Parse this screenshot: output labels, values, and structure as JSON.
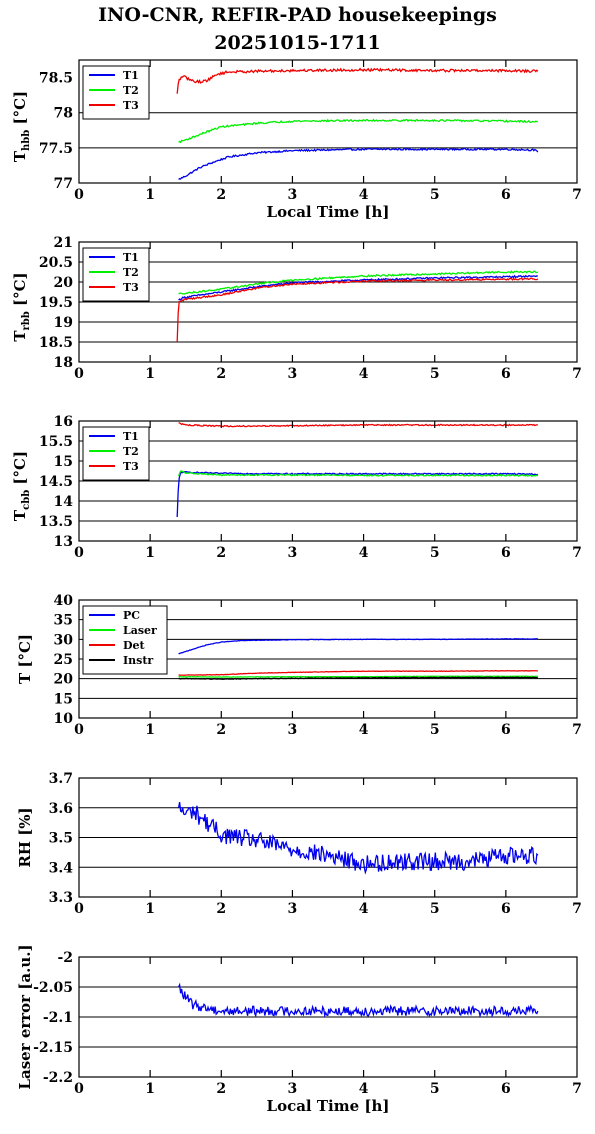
{
  "header": {
    "title_line1": "INO-CNR, REFIR-PAD housekeepings",
    "title_line2": "20251015-1711"
  },
  "colors": {
    "blue": "#0000ee",
    "green": "#00ee00",
    "red": "#ee0000",
    "black": "#000000"
  },
  "chart_data": [
    {
      "id": "hbb",
      "type": "line",
      "ylabel_main": "T",
      "ylabel_sub": "hbb",
      "ylabel_unit": "[°C]",
      "xlabel": "Local Time [h]",
      "xlim": [
        0,
        7
      ],
      "ylim": [
        77,
        78.75
      ],
      "xticks": [
        "0",
        "1",
        "2",
        "3",
        "4",
        "5",
        "6",
        "7"
      ],
      "yticks": [
        {
          "v": 77,
          "label": "77"
        },
        {
          "v": 77.5,
          "label": "77.5"
        },
        {
          "v": 78,
          "label": "78"
        },
        {
          "v": 78.5,
          "label": "78.5"
        }
      ],
      "grid": "horizontal",
      "legend": "top-left",
      "series": [
        {
          "name": "T1",
          "color": "#0000ee",
          "noise": 0.012,
          "points": [
            [
              1.4,
              77.05
            ],
            [
              1.5,
              77.1
            ],
            [
              1.7,
              77.22
            ],
            [
              1.9,
              77.3
            ],
            [
              2.1,
              77.37
            ],
            [
              2.5,
              77.43
            ],
            [
              3.0,
              77.46
            ],
            [
              4.0,
              77.48
            ],
            [
              5.0,
              77.48
            ],
            [
              6.0,
              77.48
            ],
            [
              6.4,
              77.47
            ],
            [
              6.45,
              77.44
            ]
          ]
        },
        {
          "name": "T2",
          "color": "#00ee00",
          "noise": 0.012,
          "points": [
            [
              1.4,
              77.58
            ],
            [
              1.6,
              77.65
            ],
            [
              1.8,
              77.73
            ],
            [
              2.0,
              77.8
            ],
            [
              2.5,
              77.85
            ],
            [
              3.0,
              77.88
            ],
            [
              4.0,
              77.89
            ],
            [
              5.0,
              77.89
            ],
            [
              6.0,
              77.88
            ],
            [
              6.45,
              77.87
            ]
          ]
        },
        {
          "name": "T3",
          "color": "#ee0000",
          "noise": 0.018,
          "points": [
            [
              1.38,
              78.27
            ],
            [
              1.4,
              78.45
            ],
            [
              1.45,
              78.52
            ],
            [
              1.5,
              78.5
            ],
            [
              1.6,
              78.45
            ],
            [
              1.7,
              78.44
            ],
            [
              1.8,
              78.46
            ],
            [
              1.95,
              78.55
            ],
            [
              2.1,
              78.58
            ],
            [
              3.0,
              78.6
            ],
            [
              4.0,
              78.61
            ],
            [
              5.0,
              78.6
            ],
            [
              6.0,
              78.6
            ],
            [
              6.45,
              78.59
            ]
          ]
        }
      ]
    },
    {
      "id": "rbb",
      "type": "line",
      "ylabel_main": "T",
      "ylabel_sub": "rbb",
      "ylabel_unit": "[°C]",
      "xlabel": "",
      "xlim": [
        0,
        7
      ],
      "ylim": [
        18,
        21
      ],
      "xticks": [
        "0",
        "1",
        "2",
        "3",
        "4",
        "5",
        "6",
        "7"
      ],
      "yticks": [
        {
          "v": 18,
          "label": "18"
        },
        {
          "v": 18.5,
          "label": "18.5"
        },
        {
          "v": 19,
          "label": "19"
        },
        {
          "v": 19.5,
          "label": "19.5"
        },
        {
          "v": 20,
          "label": "20"
        },
        {
          "v": 20.5,
          "label": "20.5"
        },
        {
          "v": 21,
          "label": "21"
        }
      ],
      "grid": "horizontal",
      "legend": "top-left",
      "series": [
        {
          "name": "T1",
          "color": "#0000ee",
          "noise": 0.02,
          "points": [
            [
              1.4,
              19.55
            ],
            [
              1.45,
              19.6
            ],
            [
              1.5,
              19.62
            ],
            [
              2.0,
              19.75
            ],
            [
              2.5,
              19.88
            ],
            [
              3.0,
              19.98
            ],
            [
              4.0,
              20.05
            ],
            [
              5.0,
              20.1
            ],
            [
              6.0,
              20.13
            ],
            [
              6.45,
              20.15
            ]
          ]
        },
        {
          "name": "T2",
          "color": "#00ee00",
          "noise": 0.02,
          "points": [
            [
              1.4,
              19.7
            ],
            [
              1.45,
              19.72
            ],
            [
              1.5,
              19.72
            ],
            [
              2.0,
              19.82
            ],
            [
              2.5,
              19.95
            ],
            [
              3.0,
              20.05
            ],
            [
              4.0,
              20.15
            ],
            [
              5.0,
              20.2
            ],
            [
              6.0,
              20.25
            ],
            [
              6.45,
              20.25
            ]
          ]
        },
        {
          "name": "T3",
          "color": "#ee0000",
          "noise": 0.02,
          "points": [
            [
              1.38,
              18.5
            ],
            [
              1.4,
              19.5
            ],
            [
              1.5,
              19.57
            ],
            [
              2.0,
              19.68
            ],
            [
              2.5,
              19.85
            ],
            [
              3.0,
              19.95
            ],
            [
              4.0,
              20.02
            ],
            [
              5.0,
              20.05
            ],
            [
              6.0,
              20.07
            ],
            [
              6.45,
              20.08
            ]
          ]
        }
      ]
    },
    {
      "id": "cbb",
      "type": "line",
      "ylabel_main": "T",
      "ylabel_sub": "cbb",
      "ylabel_unit": "[°C]",
      "xlabel": "",
      "xlim": [
        0,
        7
      ],
      "ylim": [
        13,
        16
      ],
      "xticks": [
        "0",
        "1",
        "2",
        "3",
        "4",
        "5",
        "6",
        "7"
      ],
      "yticks": [
        {
          "v": 13,
          "label": "13"
        },
        {
          "v": 13.5,
          "label": "13.5"
        },
        {
          "v": 14,
          "label": "14"
        },
        {
          "v": 14.5,
          "label": "14.5"
        },
        {
          "v": 15,
          "label": "15"
        },
        {
          "v": 15.5,
          "label": "15.5"
        },
        {
          "v": 16,
          "label": "16"
        }
      ],
      "grid": "horizontal",
      "legend": "top-left",
      "series": [
        {
          "name": "T1",
          "color": "#0000ee",
          "noise": 0.015,
          "points": [
            [
              1.38,
              13.6
            ],
            [
              1.4,
              14.5
            ],
            [
              1.43,
              14.72
            ],
            [
              1.5,
              14.72
            ],
            [
              2.0,
              14.69
            ],
            [
              3.0,
              14.68
            ],
            [
              4.0,
              14.68
            ],
            [
              5.0,
              14.68
            ],
            [
              6.0,
              14.68
            ],
            [
              6.45,
              14.67
            ]
          ]
        },
        {
          "name": "T2",
          "color": "#00ee00",
          "noise": 0.015,
          "points": [
            [
              1.4,
              14.62
            ],
            [
              1.43,
              14.75
            ],
            [
              1.5,
              14.7
            ],
            [
              2.0,
              14.65
            ],
            [
              3.0,
              14.65
            ],
            [
              4.0,
              14.64
            ],
            [
              5.0,
              14.64
            ],
            [
              6.0,
              14.64
            ],
            [
              6.45,
              14.63
            ]
          ]
        },
        {
          "name": "T3",
          "color": "#ee0000",
          "noise": 0.015,
          "points": [
            [
              1.4,
              15.95
            ],
            [
              1.5,
              15.9
            ],
            [
              2.0,
              15.87
            ],
            [
              3.0,
              15.88
            ],
            [
              4.0,
              15.9
            ],
            [
              5.0,
              15.9
            ],
            [
              6.0,
              15.9
            ],
            [
              6.45,
              15.9
            ]
          ]
        }
      ]
    },
    {
      "id": "temps",
      "type": "line",
      "ylabel": "T [°C]",
      "xlabel": "",
      "xlim": [
        0,
        7
      ],
      "ylim": [
        10,
        40
      ],
      "xticks": [
        "0",
        "1",
        "2",
        "3",
        "4",
        "5",
        "6",
        "7"
      ],
      "yticks": [
        {
          "v": 10,
          "label": "10"
        },
        {
          "v": 15,
          "label": "15"
        },
        {
          "v": 20,
          "label": "20"
        },
        {
          "v": 25,
          "label": "25"
        },
        {
          "v": 30,
          "label": "30"
        },
        {
          "v": 35,
          "label": "35"
        },
        {
          "v": 40,
          "label": "40"
        }
      ],
      "grid": "horizontal",
      "legend": "top-left",
      "series": [
        {
          "name": "PC",
          "color": "#0000ee",
          "noise": 0.06,
          "points": [
            [
              1.4,
              26.3
            ],
            [
              1.6,
              27.5
            ],
            [
              1.8,
              28.6
            ],
            [
              2.0,
              29.3
            ],
            [
              2.3,
              29.7
            ],
            [
              3.0,
              29.9
            ],
            [
              4.0,
              30.0
            ],
            [
              5.0,
              30.0
            ],
            [
              6.0,
              30.1
            ],
            [
              6.45,
              30.1
            ]
          ]
        },
        {
          "name": "Laser",
          "color": "#00ee00",
          "noise": 0.05,
          "points": [
            [
              1.4,
              20.5
            ],
            [
              2.0,
              20.4
            ],
            [
              3.0,
              20.5
            ],
            [
              4.0,
              20.5
            ],
            [
              5.0,
              20.6
            ],
            [
              6.0,
              20.6
            ],
            [
              6.45,
              20.6
            ]
          ]
        },
        {
          "name": "Det",
          "color": "#ee0000",
          "noise": 0.05,
          "points": [
            [
              1.4,
              20.9
            ],
            [
              2.0,
              21.0
            ],
            [
              2.5,
              21.4
            ],
            [
              3.0,
              21.6
            ],
            [
              4.0,
              21.9
            ],
            [
              5.0,
              21.9
            ],
            [
              6.0,
              22.0
            ],
            [
              6.45,
              22.0
            ]
          ]
        },
        {
          "name": "Instr",
          "color": "#000000",
          "noise": 0.08,
          "points": [
            [
              1.4,
              20.0
            ],
            [
              2.0,
              19.9
            ],
            [
              3.0,
              20.1
            ],
            [
              4.0,
              20.2
            ],
            [
              5.0,
              20.3
            ],
            [
              6.0,
              20.3
            ],
            [
              6.45,
              20.3
            ]
          ]
        }
      ]
    },
    {
      "id": "rh",
      "type": "line",
      "ylabel": "RH [%]",
      "xlabel": "",
      "xlim": [
        0,
        7
      ],
      "ylim": [
        3.3,
        3.7
      ],
      "xticks": [
        "0",
        "1",
        "2",
        "3",
        "4",
        "5",
        "6",
        "7"
      ],
      "yticks": [
        {
          "v": 3.3,
          "label": "3.3"
        },
        {
          "v": 3.4,
          "label": "3.4"
        },
        {
          "v": 3.5,
          "label": "3.5"
        },
        {
          "v": 3.6,
          "label": "3.6"
        },
        {
          "v": 3.7,
          "label": "3.7"
        }
      ],
      "grid": "horizontal",
      "legend": "none",
      "series": [
        {
          "name": "",
          "color": "#0000ee",
          "noise": 0.03,
          "points": [
            [
              1.4,
              3.6
            ],
            [
              1.5,
              3.58
            ],
            [
              1.6,
              3.59
            ],
            [
              1.8,
              3.55
            ],
            [
              2.0,
              3.51
            ],
            [
              2.5,
              3.49
            ],
            [
              3.0,
              3.46
            ],
            [
              3.5,
              3.44
            ],
            [
              4.0,
              3.41
            ],
            [
              4.5,
              3.42
            ],
            [
              5.0,
              3.42
            ],
            [
              5.5,
              3.42
            ],
            [
              6.0,
              3.44
            ],
            [
              6.45,
              3.44
            ]
          ]
        }
      ]
    },
    {
      "id": "laser",
      "type": "line",
      "ylabel": "Laser error [a.u.]",
      "xlabel": "Local Time [h]",
      "xlim": [
        0,
        7
      ],
      "ylim": [
        -2.2,
        -2
      ],
      "xticks": [
        "0",
        "1",
        "2",
        "3",
        "4",
        "5",
        "6",
        "7"
      ],
      "yticks": [
        {
          "v": -2.2,
          "label": "-2.2"
        },
        {
          "v": -2.15,
          "label": "-2.15"
        },
        {
          "v": -2.1,
          "label": "-2.1"
        },
        {
          "v": -2.05,
          "label": "-2.05"
        },
        {
          "v": -2,
          "label": "-2"
        }
      ],
      "grid": "horizontal",
      "legend": "none",
      "series": [
        {
          "name": "",
          "color": "#0000ee",
          "noise": 0.008,
          "points": [
            [
              1.4,
              -2.05
            ],
            [
              1.45,
              -2.06
            ],
            [
              1.6,
              -2.08
            ],
            [
              2.0,
              -2.09
            ],
            [
              3.0,
              -2.09
            ],
            [
              4.0,
              -2.09
            ],
            [
              5.0,
              -2.09
            ],
            [
              6.0,
              -2.09
            ],
            [
              6.45,
              -2.09
            ]
          ]
        }
      ]
    }
  ]
}
